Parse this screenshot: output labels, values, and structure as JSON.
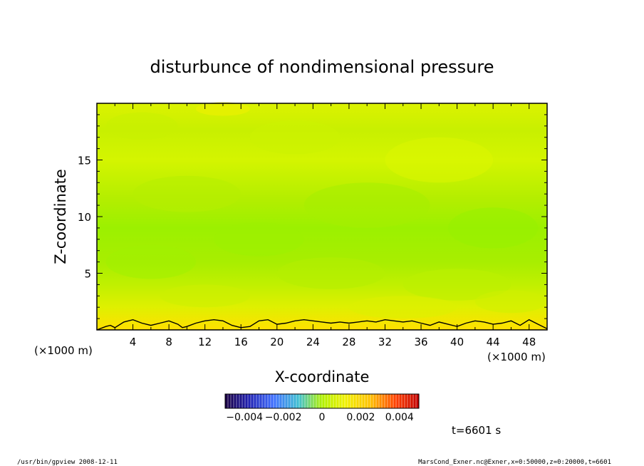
{
  "chart_data": {
    "type": "heatmap",
    "title": "disturbunce of nondimensional pressure",
    "xlabel": "X-coordinate",
    "ylabel": "Z-coordinate",
    "x_unit": "(×1000 m)",
    "y_unit": "(×1000 m)",
    "xlim": [
      0,
      50
    ],
    "ylim": [
      0,
      20
    ],
    "x_ticks": [
      4,
      8,
      12,
      16,
      20,
      24,
      28,
      32,
      36,
      40,
      44,
      48
    ],
    "y_ticks": [
      5,
      10,
      15
    ],
    "colorbar": {
      "range": [
        -0.005,
        0.005
      ],
      "tick_labels": [
        "−0.004",
        "−0.002",
        "0",
        "0.002",
        "0.004"
      ],
      "tick_values": [
        -0.004,
        -0.002,
        0,
        0.002,
        0.004
      ]
    },
    "field_description_rows": [
      {
        "z": 19.5,
        "value": 0.0013
      },
      {
        "z": 17,
        "value": 0.0009
      },
      {
        "z": 14,
        "value": 0.0007
      },
      {
        "z": 12,
        "value": 0.0006
      },
      {
        "z": 9,
        "value": 0.0004
      },
      {
        "z": 7,
        "value": 0.0005
      },
      {
        "z": 4,
        "value": 0.0008
      },
      {
        "z": 2,
        "value": 0.001
      },
      {
        "z": 0.5,
        "value": 0.0014
      }
    ],
    "contour_line": {
      "x": [
        0,
        1,
        1.5,
        2,
        3,
        4,
        5,
        6,
        7,
        8,
        9,
        9.5,
        10,
        11,
        12,
        13,
        14,
        15,
        16,
        17,
        18,
        19,
        20,
        21,
        22,
        23,
        24,
        25,
        26,
        27,
        28,
        29,
        30,
        31,
        32,
        33,
        34,
        35,
        36,
        37,
        38,
        39,
        40,
        41,
        42,
        43,
        44,
        45,
        46,
        47,
        48,
        49,
        50
      ],
      "z": [
        0,
        0.3,
        0.4,
        0.2,
        0.7,
        0.9,
        0.6,
        0.4,
        0.6,
        0.8,
        0.5,
        0.2,
        0.3,
        0.6,
        0.8,
        0.9,
        0.8,
        0.4,
        0.2,
        0.3,
        0.8,
        0.9,
        0.5,
        0.6,
        0.8,
        0.9,
        0.8,
        0.7,
        0.6,
        0.7,
        0.6,
        0.7,
        0.8,
        0.7,
        0.9,
        0.8,
        0.7,
        0.8,
        0.6,
        0.4,
        0.7,
        0.5,
        0.3,
        0.6,
        0.8,
        0.7,
        0.5,
        0.6,
        0.8,
        0.4,
        0.9,
        0.5,
        0.1
      ]
    }
  },
  "time_label": "t=6601 s",
  "footer_left": "/usr/bin/gpview   2008-12-11",
  "footer_right": "MarsCond_Exner.nc@Exner,x=0:50000,z=0:20000,t=6601",
  "colors": {
    "field_low": "#8cf000",
    "field_mid": "#c8f000",
    "field_high": "#ffe600"
  }
}
